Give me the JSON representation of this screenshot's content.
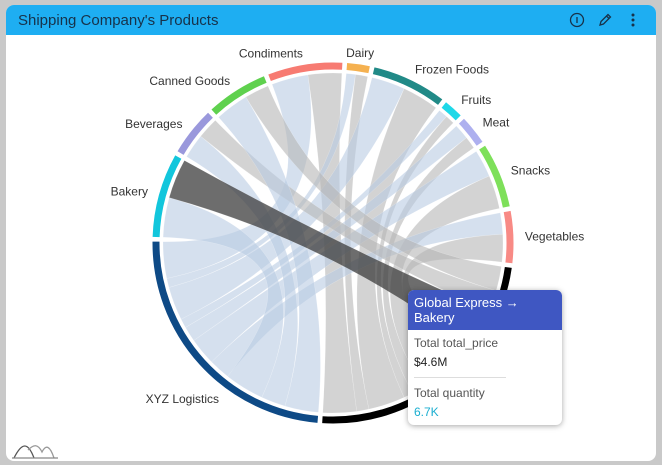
{
  "widget": {
    "title": "Shipping Company's Products",
    "icons": [
      "info-icon",
      "pencil-icon",
      "more-vertical-icon"
    ]
  },
  "chart_data": {
    "type": "chord",
    "groups": [
      {
        "name": "Condiments",
        "color": "#f77b72",
        "side": "category"
      },
      {
        "name": "Dairy",
        "color": "#f5b150",
        "side": "category"
      },
      {
        "name": "Frozen Foods",
        "color": "#218a87",
        "side": "category"
      },
      {
        "name": "Fruits",
        "color": "#1ed8e8",
        "side": "category"
      },
      {
        "name": "Meat",
        "color": "#aeb0ef",
        "side": "category"
      },
      {
        "name": "Snacks",
        "color": "#7ee05a",
        "side": "category"
      },
      {
        "name": "Vegetables",
        "color": "#f88a85",
        "side": "category"
      },
      {
        "name": "",
        "color": "#000000",
        "side": "company",
        "id": "Global Express"
      },
      {
        "name": "XYZ Logistics",
        "color": "#0e4a86",
        "side": "company"
      },
      {
        "name": "Bakery",
        "color": "#12c6dc",
        "side": "category"
      },
      {
        "name": "Beverages",
        "color": "#9a98dc",
        "side": "category"
      },
      {
        "name": "Canned Goods",
        "color": "#5fd14e",
        "side": "category"
      }
    ],
    "flows": {
      "Condiments": {
        "XYZ Logistics": 12,
        "Global Express": 11
      },
      "Dairy": {
        "XYZ Logistics": 3,
        "Global Express": 4
      },
      "Frozen Foods": {
        "XYZ Logistics": 11,
        "Global Express": 12
      },
      "Fruits": {
        "XYZ Logistics": 3,
        "Global Express": 3
      },
      "Meat": {
        "XYZ Logistics": 5,
        "Global Express": 4
      },
      "Snacks": {
        "XYZ Logistics": 9,
        "Global Express": 11
      },
      "Vegetables": {
        "XYZ Logistics": 7,
        "Global Express": 9
      },
      "Bakery": {
        "XYZ Logistics": 13,
        "Global Express": 13
      },
      "Beverages": {
        "XYZ Logistics": 8,
        "Global Express": 7
      },
      "Canned Goods": {
        "XYZ Logistics": 11,
        "Global Express": 8
      }
    },
    "ribbon_colors": {
      "XYZ Logistics": "#b9cce3",
      "Global Express": "#b5b5b5",
      "highlight": "#3c3c3c"
    },
    "highlighted": {
      "source": "Global Express",
      "target": "Bakery"
    }
  },
  "tooltip": {
    "title": "Global Express → Bakery",
    "metric1_label": "Total total_price",
    "metric1_value": "$4.6M",
    "metric2_label": "Total quantity",
    "metric2_value": "6.7K"
  }
}
